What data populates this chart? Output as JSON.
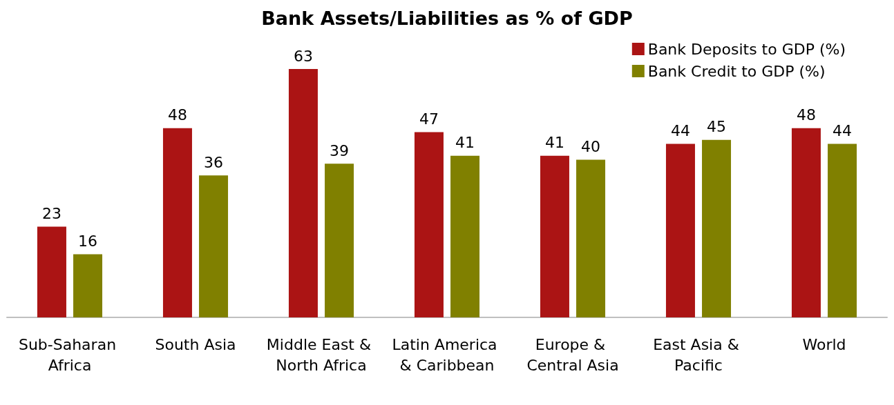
{
  "chart_data": {
    "type": "bar",
    "title": "Bank Assets/Liabilities as % of GDP",
    "categories": [
      "Sub-Saharan Africa",
      "South Asia",
      "Middle East & North Africa",
      "Latin America & Caribbean",
      "Europe & Central Asia",
      "East Asia & Pacific",
      "World"
    ],
    "series": [
      {
        "name": "Bank Deposits to GDP (%)",
        "color": "#ab1414",
        "values": [
          23,
          48,
          63,
          47,
          41,
          44,
          48
        ]
      },
      {
        "name": "Bank Credit to GDP (%)",
        "color": "#808000",
        "values": [
          16,
          36,
          39,
          41,
          40,
          45,
          44
        ]
      }
    ],
    "data_labels": true,
    "legend": "top right",
    "grid": false,
    "tick_labels": "x"
  }
}
